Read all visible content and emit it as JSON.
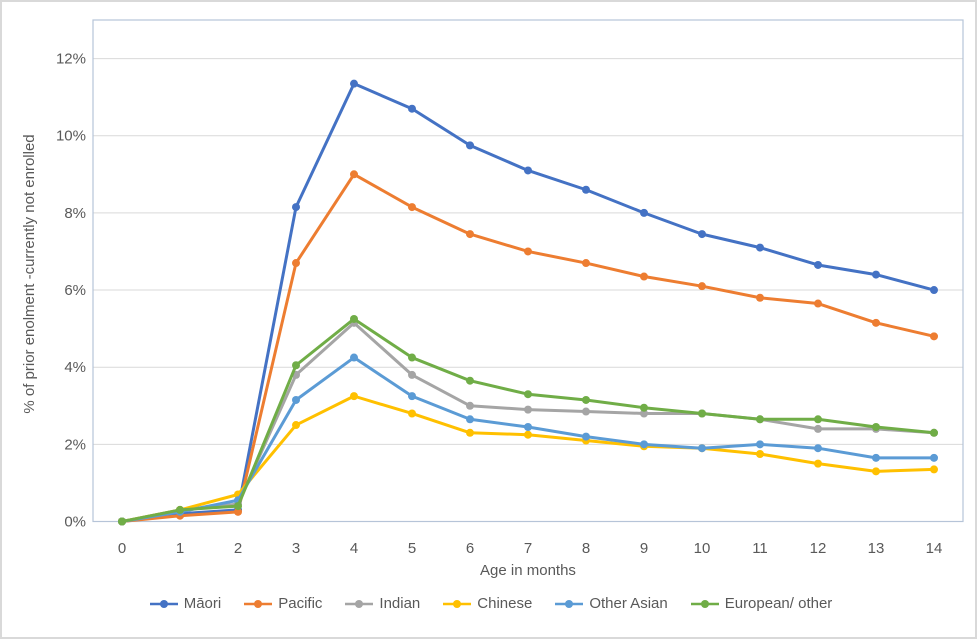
{
  "chart_data": {
    "type": "line",
    "title": "",
    "xlabel": "Age in months",
    "ylabel": "% of prior enolment -currently not enrolled",
    "x": [
      0,
      1,
      2,
      3,
      4,
      5,
      6,
      7,
      8,
      9,
      10,
      11,
      12,
      13,
      14
    ],
    "y_tick_labels": [
      "0%",
      "2%",
      "4%",
      "6%",
      "8%",
      "10%",
      "12%"
    ],
    "y_tick_values_pct": [
      0,
      2,
      4,
      6,
      8,
      10,
      12
    ],
    "ylim_pct": [
      0,
      13
    ],
    "grid": true,
    "legend_position": "bottom",
    "axis_color": "#b6c4d8",
    "gridline_color": "#d9d9d9",
    "text_color": "#595959",
    "series": [
      {
        "name": "Māori",
        "color": "#4472C4",
        "values": [
          0,
          0.2,
          0.3,
          8.15,
          11.35,
          10.7,
          9.75,
          9.1,
          8.6,
          8.0,
          7.45,
          7.1,
          6.65,
          6.4,
          6.0
        ]
      },
      {
        "name": "Pacific",
        "color": "#ED7D31",
        "values": [
          0,
          0.15,
          0.25,
          6.7,
          9.0,
          8.15,
          7.45,
          7.0,
          6.7,
          6.35,
          6.1,
          5.8,
          5.65,
          5.15,
          4.8
        ]
      },
      {
        "name": "Indian",
        "color": "#A5A5A5",
        "values": [
          0,
          0.3,
          0.45,
          3.8,
          5.15,
          3.8,
          3.0,
          2.9,
          2.85,
          2.8,
          2.8,
          2.65,
          2.4,
          2.4,
          2.3
        ]
      },
      {
        "name": "Chinese",
        "color": "#FFC000",
        "values": [
          0,
          0.3,
          0.7,
          2.5,
          3.25,
          2.8,
          2.3,
          2.25,
          2.1,
          1.95,
          1.9,
          1.75,
          1.5,
          1.3,
          1.35
        ]
      },
      {
        "name": "Other Asian",
        "color": "#5B9BD5",
        "values": [
          0,
          0.25,
          0.55,
          3.15,
          4.25,
          3.25,
          2.65,
          2.45,
          2.2,
          2.0,
          1.9,
          2.0,
          1.9,
          1.65,
          1.65
        ]
      },
      {
        "name": "European/ other",
        "color": "#70AD47",
        "values": [
          0,
          0.3,
          0.4,
          4.05,
          5.25,
          4.25,
          3.65,
          3.3,
          3.15,
          2.95,
          2.8,
          2.65,
          2.65,
          2.45,
          2.3
        ]
      }
    ]
  }
}
